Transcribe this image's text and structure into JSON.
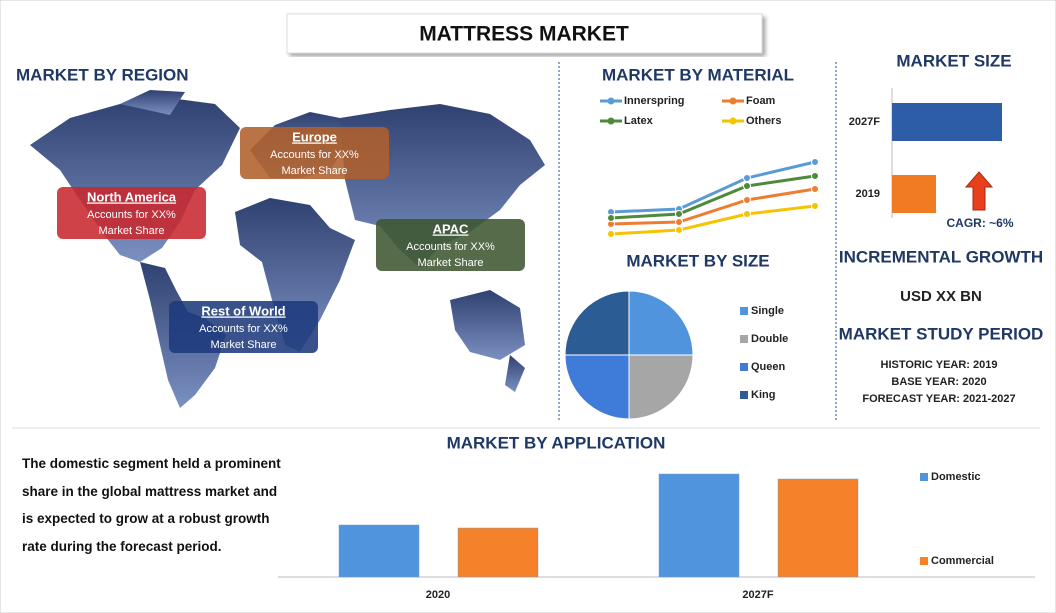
{
  "title": "MATTRESS MARKET",
  "region": {
    "title": "MARKET BY REGION",
    "boxes": [
      {
        "name": "North America",
        "lines": [
          "Accounts for XX%",
          "Market Share"
        ],
        "color": "#c8282d"
      },
      {
        "name": "Europe",
        "lines": [
          "Accounts for XX%",
          "Market Share"
        ],
        "color": "#b0602a"
      },
      {
        "name": "APAC",
        "lines": [
          "Accounts for XX%",
          "Market Share"
        ],
        "color": "#3d5630"
      },
      {
        "name": "Rest of World",
        "lines": [
          "Accounts for XX%",
          "Market Share"
        ],
        "color": "#1e3a7c"
      }
    ]
  },
  "incremental_growth": {
    "title": "INCREMENTAL GROWTH",
    "value": "USD XX BN"
  },
  "study_period": {
    "title": "MARKET STUDY PERIOD",
    "lines": [
      "HISTORIC YEAR: 2019",
      "BASE YEAR: 2020",
      "FORECAST YEAR: 2021-2027"
    ]
  },
  "application_note": "The domestic segment held a prominent share in the global mattress market and is expected to grow at a robust growth rate during the forecast period.",
  "chart_data": [
    {
      "type": "line",
      "title": "MARKET BY MATERIAL",
      "categories": [
        null,
        null,
        null,
        null
      ],
      "ylim": [
        0,
        10
      ],
      "series": [
        {
          "name": "Innerspring",
          "color": "#5b9bd5",
          "values": [
            3.8,
            4.1,
            7.2,
            8.8
          ]
        },
        {
          "name": "Foam",
          "color": "#ed7d31",
          "values": [
            2.6,
            2.8,
            5.0,
            6.1
          ]
        },
        {
          "name": "Latex",
          "color": "#4e8a3c",
          "values": [
            3.2,
            3.6,
            6.4,
            7.4
          ]
        },
        {
          "name": "Others",
          "color": "#f5c400",
          "values": [
            1.6,
            2.0,
            3.6,
            4.4
          ]
        }
      ]
    },
    {
      "type": "hbar",
      "title": "MARKET SIZE",
      "categories": [
        "2027F",
        "2019"
      ],
      "values": [
        10,
        4
      ],
      "colors": [
        "#2e5da8",
        "#f07b22"
      ],
      "xlim": [
        0,
        12
      ],
      "annotation": "CAGR: ~6%"
    },
    {
      "type": "pie",
      "title": "MARKET BY SIZE",
      "categories": [
        "Single",
        "Double",
        "Queen",
        "King"
      ],
      "values": [
        25,
        25,
        25,
        25
      ],
      "colors": [
        "#4f94dc",
        "#a6a6a6",
        "#3f7bd9",
        "#2c5c94"
      ]
    },
    {
      "type": "bar",
      "title": "MARKET BY APPLICATION",
      "categories": [
        "2020",
        "2027F"
      ],
      "ylim": [
        0,
        110
      ],
      "series": [
        {
          "name": "Domestic",
          "color": "#4f94dc",
          "values": [
            52,
            103
          ]
        },
        {
          "name": "Commercial",
          "color": "#f5812a",
          "values": [
            49,
            98
          ]
        }
      ]
    }
  ]
}
